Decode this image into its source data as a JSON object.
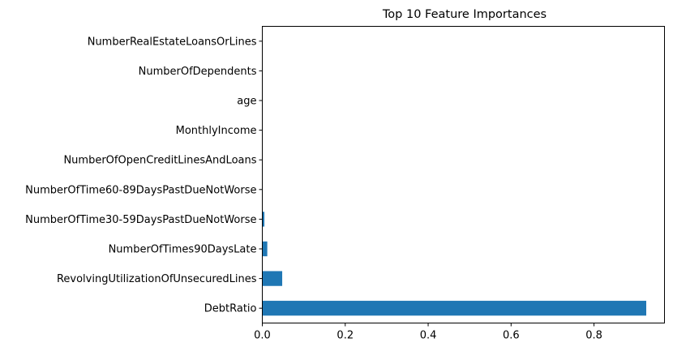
{
  "chart_data": {
    "type": "bar",
    "orientation": "horizontal",
    "title": "Top 10 Feature Importances",
    "xlabel": "",
    "ylabel": "",
    "xlim": [
      0,
      0.97
    ],
    "xticks": [
      0.0,
      0.2,
      0.4,
      0.6,
      0.8
    ],
    "xtick_labels": [
      "0.0",
      "0.2",
      "0.4",
      "0.6",
      "0.8"
    ],
    "grid": false,
    "bar_color": "#1f77b4",
    "categories": [
      "DebtRatio",
      "RevolvingUtilizationOfUnsecuredLines",
      "NumberOfTimes90DaysLate",
      "NumberOfTime30-59DaysPastDueNotWorse",
      "NumberOfTime60-89DaysPastDueNotWorse",
      "NumberOfOpenCreditLinesAndLoans",
      "MonthlyIncome",
      "age",
      "NumberOfDependents",
      "NumberRealEstateLoansOrLines"
    ],
    "values": [
      0.926,
      0.048,
      0.012,
      0.005,
      0.001,
      0.0005,
      0.0004,
      0.0003,
      0.0002,
      0.0001
    ]
  }
}
